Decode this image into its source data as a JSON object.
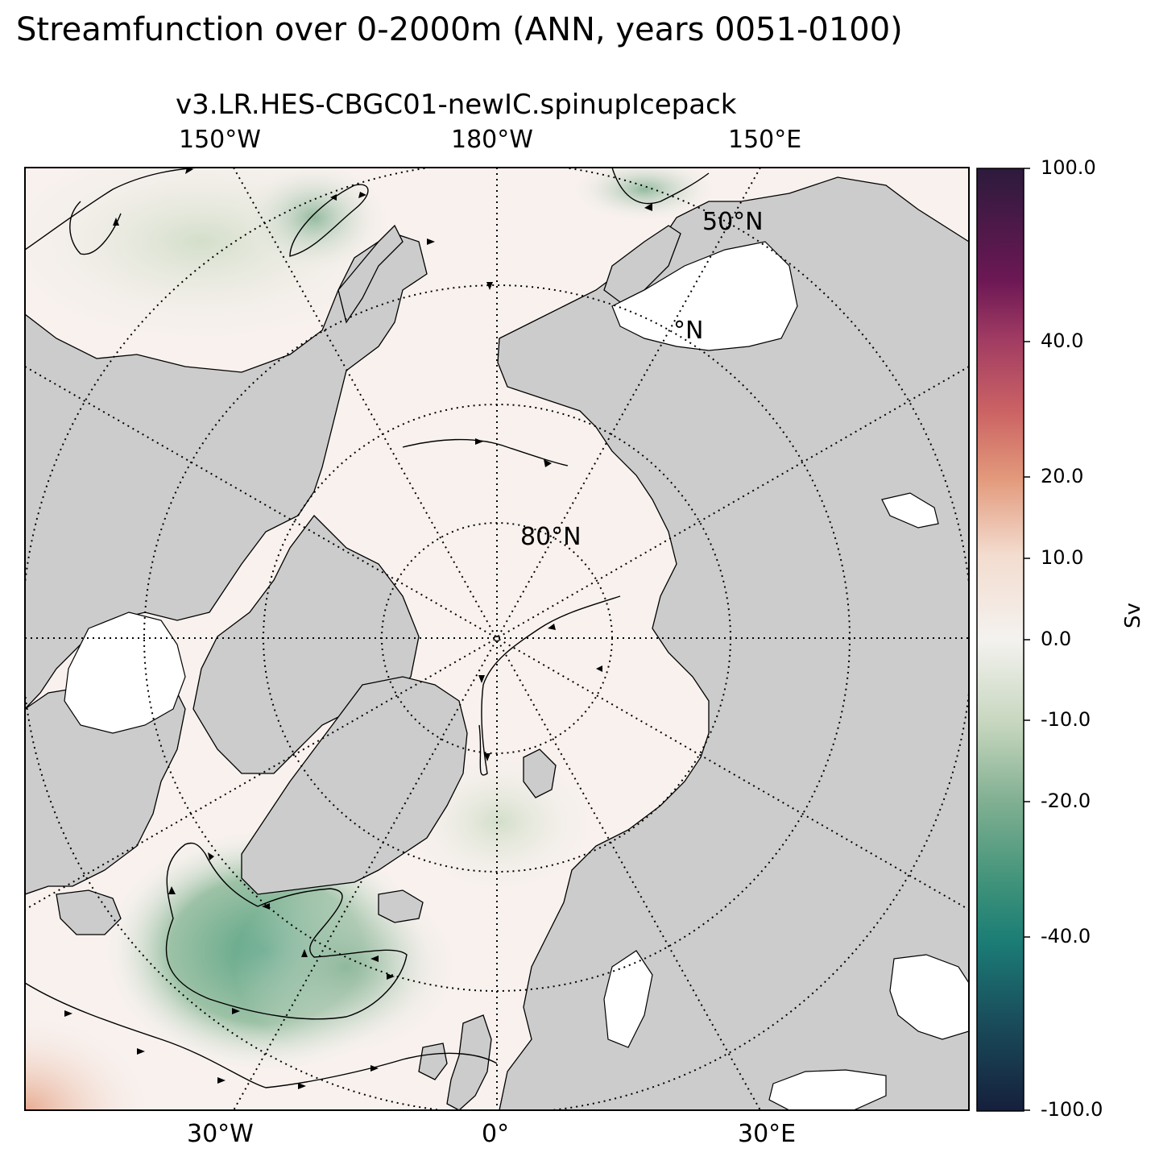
{
  "suptitle": "Streamfunction over 0-2000m (ANN, years 0051-0100)",
  "subtitle": "v3.LR.HES-CBGC01-newIC.spinupIcepack",
  "map": {
    "projection": "north-polar-stereographic",
    "top_lon_labels": [
      "150°W",
      "180°W",
      "150°E"
    ],
    "bottom_lon_labels": [
      "30°W",
      "0°",
      "30°E"
    ],
    "lat_labels": [
      "50°N",
      "°N",
      "80°N"
    ],
    "land_color": "#cccccc",
    "ocean_near_zero_color": "#f8f1ee"
  },
  "colorbar": {
    "unit": "Sv",
    "ticks": [
      "100.0",
      "40.0",
      "20.0",
      "10.0",
      "0.0",
      "-10.0",
      "-20.0",
      "-40.0",
      "-100.0"
    ],
    "colors": [
      "#2c1a3c",
      "#6d1855",
      "#a03b63",
      "#cc6464",
      "#e39a7c",
      "#f3dccf",
      "#f4f2ef",
      "#c6d6be",
      "#82b092",
      "#3e9279",
      "#1b7d76",
      "#1a4f5d",
      "#151f3c"
    ]
  }
}
